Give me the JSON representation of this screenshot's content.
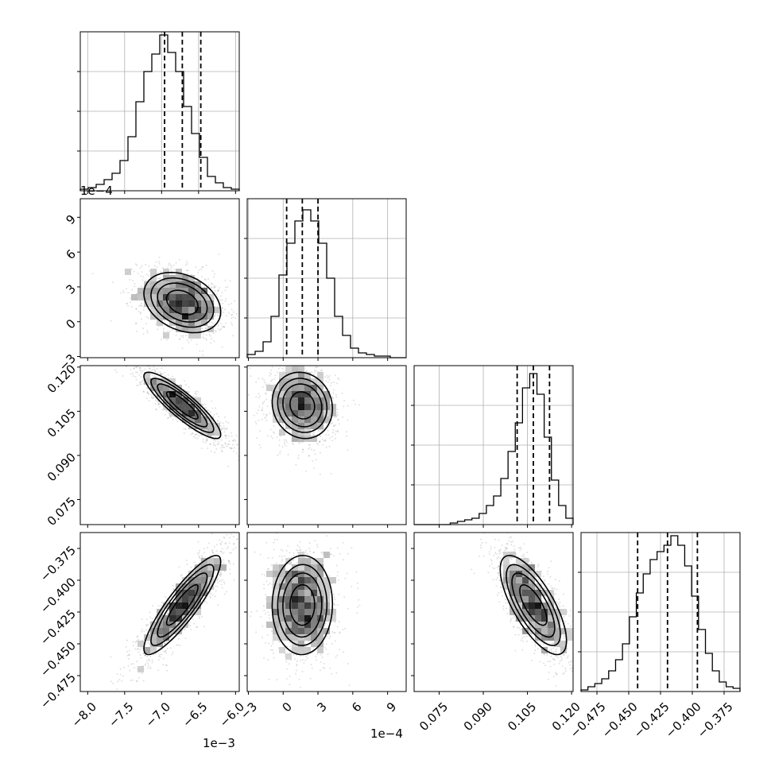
{
  "chart_data": {
    "type": "corner",
    "parameters": [
      {
        "range": [
          -8.1,
          -5.95
        ],
        "ticks": [
          -8.0,
          -7.5,
          -7.0,
          -6.5,
          -6.0
        ],
        "tick_labels": [
          "−8.0",
          "−7.5",
          "−7.0",
          "−6.5",
          "−6.0"
        ],
        "offset_label": "1e−3",
        "quantiles": [
          -6.96,
          -6.72,
          -6.47
        ]
      },
      {
        "range": [
          -3.1,
          10.6
        ],
        "ticks": [
          -3,
          0,
          3,
          6,
          9
        ],
        "tick_labels": [
          "−3",
          "0",
          "3",
          "6",
          "9"
        ],
        "offset_label": "1e−4",
        "quantiles": [
          0.3,
          1.65,
          3.0
        ]
      },
      {
        "range": [
          0.0665,
          0.1205
        ],
        "ticks": [
          0.075,
          0.09,
          0.105,
          0.12
        ],
        "tick_labels": [
          "0.075",
          "0.090",
          "0.105",
          "0.120"
        ],
        "offset_label": "",
        "quantiles": [
          0.1015,
          0.107,
          0.1125
        ]
      },
      {
        "range": [
          -0.4875,
          -0.3625
        ],
        "ticks": [
          -0.475,
          -0.45,
          -0.425,
          -0.4,
          -0.375
        ],
        "tick_labels": [
          "−0.475",
          "−0.450",
          "−0.425",
          "−0.400",
          "−0.375"
        ],
        "offset_label": "",
        "quantiles": [
          -0.443,
          -0.4195,
          -0.396
        ]
      }
    ],
    "histograms": [
      [
        0.01,
        0.02,
        0.04,
        0.07,
        0.11,
        0.19,
        0.34,
        0.56,
        0.75,
        0.86,
        0.98,
        0.87,
        0.75,
        0.53,
        0.36,
        0.21,
        0.09,
        0.05,
        0.02,
        0.01
      ],
      [
        0.02,
        0.04,
        0.1,
        0.26,
        0.52,
        0.72,
        0.86,
        0.93,
        0.86,
        0.72,
        0.5,
        0.26,
        0.14,
        0.06,
        0.03,
        0.02,
        0.01,
        0.01,
        0,
        0
      ],
      [
        0,
        0,
        0,
        0,
        0,
        0.01,
        0.02,
        0.03,
        0.04,
        0.07,
        0.12,
        0.18,
        0.29,
        0.46,
        0.64,
        0.86,
        0.95,
        0.82,
        0.55,
        0.28,
        0.12,
        0.04
      ],
      [
        0.01,
        0.03,
        0.05,
        0.08,
        0.13,
        0.2,
        0.3,
        0.47,
        0.62,
        0.74,
        0.83,
        0.88,
        0.92,
        0.98,
        0.92,
        0.79,
        0.6,
        0.39,
        0.24,
        0.13,
        0.06,
        0.03,
        0.02
      ]
    ],
    "pairs": [
      {
        "x": 0,
        "y": 1,
        "mean": [
          -6.72,
          1.65
        ],
        "sd": [
          0.3,
          1.5
        ],
        "corr": -0.3
      },
      {
        "x": 0,
        "y": 2,
        "mean": [
          -6.72,
          0.107
        ],
        "sd": [
          0.3,
          0.0065
        ],
        "corr": -0.88
      },
      {
        "x": 1,
        "y": 2,
        "mean": [
          1.65,
          0.107
        ],
        "sd": [
          1.5,
          0.0065
        ],
        "corr": -0.1
      },
      {
        "x": 0,
        "y": 3,
        "mean": [
          -6.72,
          -0.4195
        ],
        "sd": [
          0.3,
          0.0225
        ],
        "corr": 0.88
      },
      {
        "x": 1,
        "y": 3,
        "mean": [
          1.65,
          -0.4195
        ],
        "sd": [
          1.5,
          0.0225
        ],
        "corr": 0.02
      },
      {
        "x": 2,
        "y": 3,
        "mean": [
          0.107,
          -0.4195
        ],
        "sd": [
          0.0065,
          0.0225
        ],
        "corr": -0.72
      }
    ],
    "grid": true
  }
}
